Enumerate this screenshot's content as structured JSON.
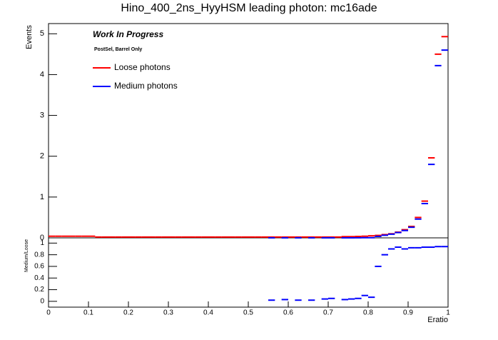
{
  "chart_data": [
    {
      "type": "histogram",
      "title": "Hino_400_2ns_HyyHSM leading photon: mc16ade",
      "y_label": "Events",
      "annotations": [
        "Work In Progress",
        "PostSel, Barrel Only"
      ],
      "bins": [
        0,
        0.0167,
        0.0333,
        0.05,
        0.0667,
        0.0833,
        0.1,
        0.1167,
        0.1333,
        0.15,
        0.1667,
        0.1833,
        0.2,
        0.2167,
        0.2333,
        0.25,
        0.2667,
        0.2833,
        0.3,
        0.3167,
        0.3333,
        0.35,
        0.3667,
        0.3833,
        0.4,
        0.4167,
        0.4333,
        0.45,
        0.4667,
        0.4833,
        0.5,
        0.5167,
        0.5333,
        0.55,
        0.5667,
        0.5833,
        0.6,
        0.6167,
        0.6333,
        0.65,
        0.6667,
        0.6833,
        0.7,
        0.7167,
        0.7333,
        0.75,
        0.7667,
        0.7833,
        0.8,
        0.8167,
        0.8333,
        0.85,
        0.8667,
        0.8833,
        0.9,
        0.9167,
        0.9333,
        0.95,
        0.9667,
        0.9833,
        1
      ],
      "series": [
        {
          "name": "Loose photons",
          "color": "#ff0000",
          "values": [
            0.04,
            0.04,
            0.04,
            0.04,
            0.04,
            0.04,
            0.04,
            0.02,
            0.02,
            0.02,
            0.02,
            0.02,
            0.02,
            0.02,
            0.02,
            0.02,
            0.02,
            0.02,
            0.02,
            0.02,
            0.02,
            0.02,
            0.02,
            0.02,
            0.02,
            0.02,
            0.02,
            0.02,
            0.02,
            0.02,
            0.02,
            0.02,
            0.02,
            0.02,
            0.02,
            0.02,
            0.02,
            0.02,
            0.02,
            0.02,
            0.02,
            0.02,
            0.02,
            0.02,
            0.03,
            0.03,
            0.035,
            0.04,
            0.05,
            0.06,
            0.08,
            0.1,
            0.14,
            0.2,
            0.28,
            0.5,
            0.9,
            1.96,
            4.5,
            4.93
          ]
        },
        {
          "name": "Medium photons",
          "color": "#0000ff",
          "values": [
            null,
            null,
            null,
            null,
            null,
            null,
            null,
            null,
            null,
            null,
            null,
            null,
            null,
            null,
            null,
            null,
            null,
            null,
            null,
            null,
            null,
            null,
            null,
            null,
            null,
            null,
            null,
            null,
            null,
            null,
            null,
            null,
            null,
            0.001,
            null,
            0.001,
            null,
            0.001,
            null,
            0.001,
            null,
            0.001,
            0.001,
            null,
            0.001,
            0.001,
            0.002,
            0.004,
            0.004,
            0.036,
            0.064,
            0.09,
            0.13,
            0.18,
            0.26,
            0.46,
            0.84,
            1.8,
            4.22,
            4.6
          ]
        }
      ],
      "xlim": [
        0,
        1
      ],
      "ylim": [
        0,
        5.25
      ],
      "yticks": [
        0,
        1,
        2,
        3,
        4,
        5
      ]
    },
    {
      "type": "histogram",
      "y_label": "Medium/Loose",
      "x_label": "Eratio",
      "color": "#0000ff",
      "values": [
        null,
        null,
        null,
        null,
        null,
        null,
        null,
        null,
        null,
        null,
        null,
        null,
        null,
        null,
        null,
        null,
        null,
        null,
        null,
        null,
        null,
        null,
        null,
        null,
        null,
        null,
        null,
        null,
        null,
        null,
        null,
        null,
        null,
        0.02,
        null,
        0.03,
        null,
        0.02,
        null,
        0.02,
        null,
        0.04,
        0.05,
        null,
        0.03,
        0.04,
        0.05,
        0.1,
        0.07,
        0.6,
        0.8,
        0.9,
        0.93,
        0.9,
        0.92,
        0.92,
        0.93,
        0.93,
        0.94,
        0.94
      ],
      "xlim": [
        0,
        1
      ],
      "xticks": [
        0,
        0.1,
        0.2,
        0.3,
        0.4,
        0.5,
        0.6,
        0.7,
        0.8,
        0.9,
        1
      ],
      "ylim": [
        -0.1,
        1.09
      ],
      "yticks": [
        0,
        0.2,
        0.4,
        0.6,
        0.8,
        1
      ]
    }
  ]
}
